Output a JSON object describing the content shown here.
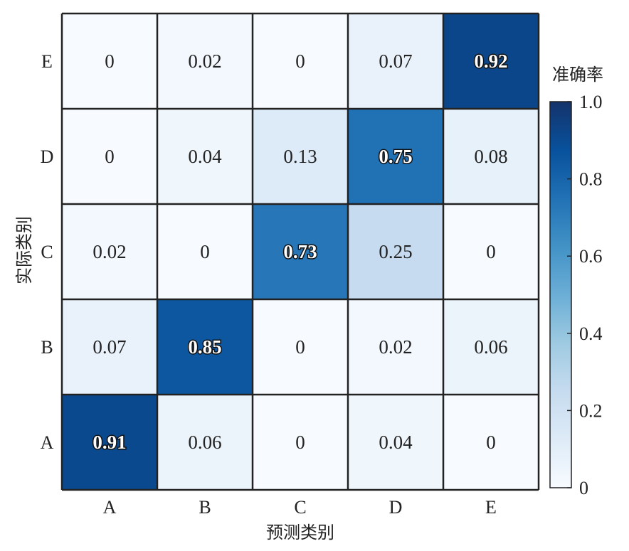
{
  "chart_data": {
    "type": "heatmap",
    "x_categories": [
      "A",
      "B",
      "C",
      "D",
      "E"
    ],
    "y_categories": [
      "A",
      "B",
      "C",
      "D",
      "E"
    ],
    "xlabel": "预测类别",
    "ylabel": "实际类别",
    "colorbar_title": "准确率",
    "colorbar_ticks": [
      "0",
      "0.2",
      "0.4",
      "0.6",
      "0.8",
      "1.0"
    ],
    "colorbar_range": [
      0,
      1.0
    ],
    "colormap": [
      "#f7fbff",
      "#deebf7",
      "#c6dbef",
      "#9ecae1",
      "#6baed6",
      "#4292c6",
      "#2171b5",
      "#08519c",
      "#14336b"
    ],
    "grid": true,
    "matrix": [
      {
        "actual": "E",
        "values": [
          0,
          0.02,
          0,
          0.07,
          0.92
        ],
        "labels": [
          "0",
          "0.02",
          "0",
          "0.07",
          "0.92"
        ]
      },
      {
        "actual": "D",
        "values": [
          0,
          0.04,
          0.13,
          0.75,
          0.08
        ],
        "labels": [
          "0",
          "0.04",
          "0.13",
          "0.75",
          "0.08"
        ]
      },
      {
        "actual": "C",
        "values": [
          0.02,
          0,
          0.73,
          0.25,
          0
        ],
        "labels": [
          "0.02",
          "0",
          "0.73",
          "0.25",
          "0"
        ]
      },
      {
        "actual": "B",
        "values": [
          0.07,
          0.85,
          0,
          0.02,
          0.06
        ],
        "labels": [
          "0.07",
          "0.85",
          "0",
          "0.02",
          "0.06"
        ]
      },
      {
        "actual": "A",
        "values": [
          0.91,
          0.06,
          0,
          0.04,
          0
        ],
        "labels": [
          "0.91",
          "0.06",
          "0",
          "0.04",
          "0"
        ]
      }
    ]
  }
}
